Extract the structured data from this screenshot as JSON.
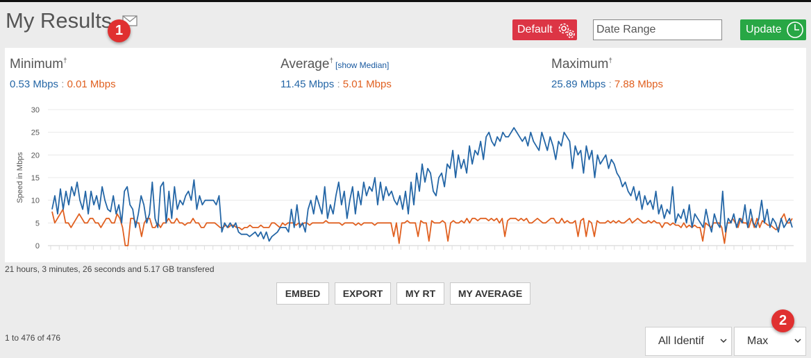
{
  "page": {
    "title": "My Results"
  },
  "badges": {
    "first": "1",
    "second": "2"
  },
  "toolbar": {
    "default_label": "Default",
    "date_range_placeholder": "Date Range",
    "update_label": "Update"
  },
  "stats": {
    "minimum": {
      "label": "Minimum",
      "marker": "†",
      "download": "0.53 Mbps",
      "upload": "0.01 Mbps"
    },
    "average": {
      "label": "Average",
      "marker": "†",
      "median_link": "[show Median]",
      "download": "11.45 Mbps",
      "upload": "5.01 Mbps"
    },
    "maximum": {
      "label": "Maximum",
      "marker": "†",
      "download": "25.89 Mbps",
      "upload": "7.88 Mbps"
    },
    "separator": ":"
  },
  "summary": "21 hours, 3 minutes, 26 seconds and 5.17 GB transfered",
  "actions": {
    "embed": "EMBED",
    "export": "EXPORT",
    "my_rt": "MY RT",
    "my_average": "MY AVERAGE"
  },
  "results": {
    "count_text": "1 to 476 of 476",
    "identifier_select": "All Identif",
    "metric_select": "Max"
  },
  "colors": {
    "download": "#2466a6",
    "upload": "#e06020"
  },
  "chart_data": {
    "type": "line",
    "ylabel": "Speed in Mbps",
    "ylim": [
      0,
      30
    ],
    "yticks": [
      0,
      5,
      10,
      15,
      20,
      25,
      30
    ],
    "series": [
      {
        "values": [
          8,
          11,
          7,
          12.5,
          8,
          12,
          9,
          13,
          11,
          14,
          10,
          8,
          12,
          7,
          12,
          9,
          11,
          8,
          13,
          10,
          8,
          7.5,
          11,
          7,
          9,
          5,
          12,
          13,
          9,
          8,
          4,
          7,
          11,
          9,
          5,
          7,
          14,
          6,
          4,
          13,
          14,
          5,
          12,
          6,
          13,
          8,
          10,
          9,
          11,
          12,
          10,
          14.5,
          8,
          11,
          9,
          10,
          10,
          10,
          10,
          9,
          11,
          3,
          5,
          4,
          5,
          4,
          5,
          3,
          2.5,
          2.5,
          2.5,
          2,
          2.5,
          3,
          2,
          3,
          1.5,
          3,
          1,
          2,
          2.5,
          3,
          4,
          4,
          4,
          3,
          8,
          4,
          9,
          4,
          5,
          3,
          8,
          10,
          7,
          11,
          9,
          7,
          13,
          6,
          9,
          7,
          11,
          14,
          9,
          12,
          6,
          10,
          13,
          7,
          12,
          9,
          14,
          11,
          13,
          12,
          15,
          9,
          14,
          10,
          13,
          11,
          12,
          10,
          9,
          11,
          8,
          12,
          7,
          14,
          9,
          16,
          12,
          18,
          14,
          17,
          16,
          12,
          11,
          15,
          16,
          13,
          18,
          17,
          21,
          15,
          20,
          17,
          19,
          16,
          22,
          18,
          21,
          20,
          23,
          19,
          24,
          25,
          23,
          22,
          24,
          23,
          25,
          24,
          24,
          25,
          26,
          25,
          24,
          23,
          24,
          22,
          25,
          23,
          22,
          21,
          25,
          23,
          21,
          24,
          22,
          19,
          23,
          22,
          25,
          24,
          23,
          17,
          22,
          20,
          21,
          16,
          22,
          19,
          21,
          15,
          20,
          18,
          19,
          20,
          17,
          19,
          18,
          16,
          15,
          13,
          14,
          12,
          11,
          13,
          10,
          12,
          8,
          11,
          9,
          10,
          8,
          12,
          7,
          9,
          6,
          8,
          7,
          13,
          5,
          7,
          6,
          8,
          5,
          9,
          4,
          7,
          6,
          5,
          4,
          8,
          5,
          3,
          7,
          5,
          4,
          12,
          3,
          6,
          5,
          7,
          4,
          6,
          5,
          9,
          4,
          8,
          5,
          4,
          6,
          10,
          5,
          8,
          4,
          6,
          5,
          3,
          6,
          4,
          5,
          6,
          4
        ]
      },
      {
        "values": [
          7.5,
          5,
          6,
          7,
          8,
          5,
          5,
          4,
          5,
          6,
          7,
          6,
          5,
          5,
          6,
          6,
          5,
          5,
          4,
          5,
          6,
          6,
          5,
          5,
          7,
          6,
          4,
          0,
          0,
          6,
          6,
          5,
          5,
          2,
          5,
          6,
          6,
          4,
          4,
          5,
          4,
          5,
          5,
          6,
          5,
          5,
          6,
          5,
          5,
          4.5,
          5,
          5,
          6,
          5,
          5,
          4,
          4,
          5,
          5,
          5,
          5,
          4.5,
          4,
          4,
          4.5,
          4,
          4.5,
          4.5,
          4,
          4,
          3.5,
          4,
          4,
          4.5,
          4,
          4,
          4,
          4.5,
          4,
          4,
          4,
          5,
          5,
          4.5,
          4,
          5,
          4.5,
          5,
          5,
          5,
          4.5,
          5,
          4.5,
          5,
          5,
          4.5,
          5,
          5,
          5,
          5,
          5,
          5.5,
          5,
          5,
          5,
          5,
          5,
          4.5,
          5,
          5,
          5,
          5,
          4.5,
          5,
          4.5,
          5,
          5,
          5,
          5,
          4.5,
          5,
          5,
          5,
          5,
          5,
          5,
          2,
          5,
          0.5,
          5,
          5,
          5.5,
          5,
          5,
          5,
          2,
          5.5,
          5,
          5,
          1,
          5.5,
          5,
          5,
          5,
          5.5,
          5,
          1,
          5,
          5.5,
          5,
          5,
          5.5,
          5,
          6,
          5,
          6,
          6,
          5.5,
          6,
          6,
          6,
          5.5,
          6,
          5.5,
          6,
          5,
          6,
          2,
          5.5,
          6,
          6,
          6,
          5.5,
          6,
          5.5,
          6,
          5,
          5,
          5.5,
          6,
          5.5,
          5,
          5,
          5.5,
          6,
          6,
          5,
          5,
          6,
          5,
          5.5,
          5,
          5,
          5.5,
          2,
          5.5,
          6,
          2,
          5.5,
          5,
          2,
          5.5,
          5,
          5,
          5,
          5.5,
          5,
          5.5,
          5,
          5.5,
          5,
          5,
          5.5,
          6,
          5,
          5.5,
          6,
          5.5,
          5,
          5,
          5.5,
          5,
          5.5,
          5,
          5,
          4,
          5,
          5,
          4.5,
          5,
          4.5,
          4.5,
          4,
          5,
          4,
          4.5,
          4,
          4.5,
          4,
          4,
          1,
          5,
          4.5,
          4,
          5,
          5,
          5,
          4,
          0.5,
          5,
          5,
          6,
          5,
          4,
          6,
          5,
          5,
          4,
          6,
          4,
          6,
          4,
          5.5,
          5,
          4.5,
          4.5,
          4,
          3.5,
          4,
          6,
          7,
          5,
          5,
          6
        ]
      }
    ]
  }
}
